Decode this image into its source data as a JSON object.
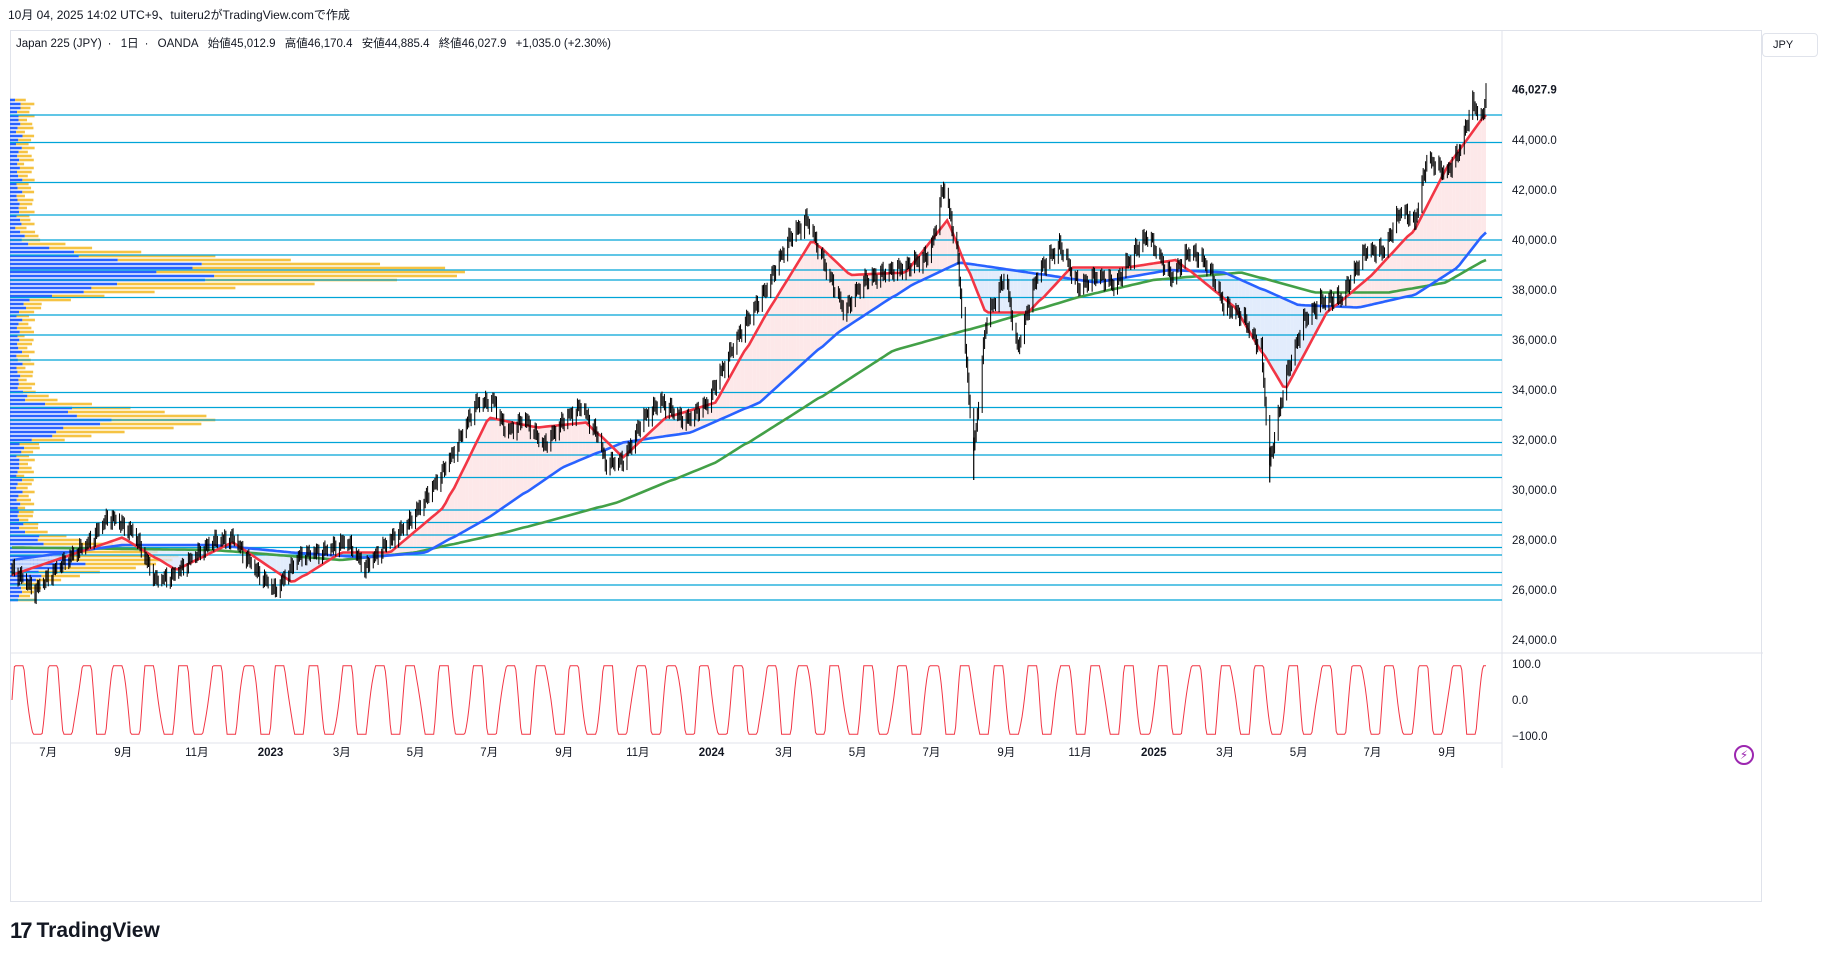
{
  "snapshot": "10月 04, 2025 14:02 UTC+9、tuiteru2がTradingView.comで作成",
  "symbol": {
    "name": "Japan 225 (JPY)",
    "interval": "1日",
    "broker": "OANDA",
    "open": "始値45,012.9",
    "high": "高値46,170.4",
    "low": "安値44,885.4",
    "close": "終値46,027.9",
    "change": "+1,035.0 (+2.30%)",
    "separator": "·"
  },
  "currency": "JPY",
  "logo": {
    "mark": "17",
    "word": "TradingView"
  },
  "colors": {
    "price": "#000000",
    "ma_short": "#f23645",
    "ma_mid": "#2962ff",
    "ma_long": "#43a047",
    "level_line": "#00a4d8",
    "oscillator": "#f23645",
    "vp_up": "#2962ff",
    "vp_down": "#f5c343",
    "fill_up": "#fde2e4",
    "fill_down": "#dbe7fb",
    "last_price_badge": "#000000"
  },
  "icons": {
    "alert": "lightning-icon"
  },
  "chart_data": [
    {
      "type": "candlestick",
      "title": "",
      "ylabel": "",
      "ylim": [
        23000,
        47500
      ],
      "y_ticks": [
        24000,
        26000,
        28000,
        30000,
        32000,
        34000,
        36000,
        38000,
        40000,
        42000,
        44000,
        46000
      ],
      "y_tick_labels": [
        "24,000.0",
        "26,000.0",
        "28,000.0",
        "30,000.0",
        "32,000.0",
        "34,000.0",
        "36,000.0",
        "38,000.0",
        "40,000.0",
        "42,000.0",
        "44,000.0",
        "46,000.0"
      ],
      "last_price_label": "46,027.9",
      "last_price": 46027.9,
      "x_tick_labels": [
        "7月",
        "9月",
        "11月",
        "2023",
        "3月",
        "5月",
        "7月",
        "9月",
        "11月",
        "2024",
        "3月",
        "5月",
        "7月",
        "9月",
        "11月",
        "2025",
        "3月",
        "5月",
        "7月",
        "9月"
      ],
      "x_tick_dates": [
        "2022-07-01",
        "2022-09-01",
        "2022-11-01",
        "2023-01-01",
        "2023-03-01",
        "2023-05-01",
        "2023-07-01",
        "2023-09-01",
        "2023-11-01",
        "2024-01-01",
        "2024-03-01",
        "2024-05-01",
        "2024-07-01",
        "2024-09-01",
        "2024-11-01",
        "2025-01-01",
        "2025-03-01",
        "2025-05-01",
        "2025-07-01",
        "2025-09-01"
      ],
      "x_bold_ticks": [
        "2023",
        "2024",
        "2025"
      ],
      "close_path": [
        [
          "2022-06-01",
          26800
        ],
        [
          "2022-06-20",
          25900
        ],
        [
          "2022-07-10",
          26900
        ],
        [
          "2022-08-05",
          27900
        ],
        [
          "2022-08-20",
          28900
        ],
        [
          "2022-09-10",
          28200
        ],
        [
          "2022-09-28",
          26300
        ],
        [
          "2022-10-12",
          26500
        ],
        [
          "2022-10-28",
          27200
        ],
        [
          "2022-11-15",
          27900
        ],
        [
          "2022-12-01",
          28000
        ],
        [
          "2022-12-20",
          26700
        ],
        [
          "2023-01-05",
          25900
        ],
        [
          "2023-01-25",
          27300
        ],
        [
          "2023-02-15",
          27500
        ],
        [
          "2023-03-05",
          27900
        ],
        [
          "2023-03-20",
          26800
        ],
        [
          "2023-04-05",
          27700
        ],
        [
          "2023-04-25",
          28600
        ],
        [
          "2023-05-15",
          30000
        ],
        [
          "2023-05-31",
          31300
        ],
        [
          "2023-06-20",
          33400
        ],
        [
          "2023-07-05",
          33500
        ],
        [
          "2023-07-15",
          32200
        ],
        [
          "2023-07-30",
          32800
        ],
        [
          "2023-08-15",
          31700
        ],
        [
          "2023-08-31",
          32700
        ],
        [
          "2023-09-15",
          33300
        ],
        [
          "2023-09-30",
          32000
        ],
        [
          "2023-10-05",
          31000
        ],
        [
          "2023-10-20",
          31100
        ],
        [
          "2023-11-05",
          32800
        ],
        [
          "2023-11-20",
          33500
        ],
        [
          "2023-12-10",
          32700
        ],
        [
          "2023-12-28",
          33400
        ],
        [
          "2024-01-10",
          34800
        ],
        [
          "2024-01-25",
          36300
        ],
        [
          "2024-02-15",
          38000
        ],
        [
          "2024-03-05",
          40000
        ],
        [
          "2024-03-20",
          40800
        ],
        [
          "2024-04-05",
          38800
        ],
        [
          "2024-04-20",
          37100
        ],
        [
          "2024-05-05",
          38300
        ],
        [
          "2024-05-25",
          38700
        ],
        [
          "2024-06-10",
          38900
        ],
        [
          "2024-06-30",
          39400
        ],
        [
          "2024-07-11",
          42200
        ],
        [
          "2024-07-22",
          39600
        ],
        [
          "2024-08-05",
          31500
        ],
        [
          "2024-08-15",
          36700
        ],
        [
          "2024-08-31",
          38600
        ],
        [
          "2024-09-10",
          35600
        ],
        [
          "2024-09-27",
          38700
        ],
        [
          "2024-10-15",
          39800
        ],
        [
          "2024-10-31",
          38100
        ],
        [
          "2024-11-15",
          38600
        ],
        [
          "2024-11-30",
          38200
        ],
        [
          "2024-12-15",
          39500
        ],
        [
          "2024-12-27",
          40200
        ],
        [
          "2025-01-15",
          38500
        ],
        [
          "2025-01-31",
          39600
        ],
        [
          "2025-02-15",
          39000
        ],
        [
          "2025-02-28",
          37400
        ],
        [
          "2025-03-15",
          37000
        ],
        [
          "2025-03-31",
          35600
        ],
        [
          "2025-04-07",
          31100
        ],
        [
          "2025-04-20",
          34500
        ],
        [
          "2025-05-05",
          36800
        ],
        [
          "2025-05-20",
          37600
        ],
        [
          "2025-06-05",
          37700
        ],
        [
          "2025-06-25",
          39600
        ],
        [
          "2025-07-10",
          39600
        ],
        [
          "2025-07-25",
          41300
        ],
        [
          "2025-08-05",
          40700
        ],
        [
          "2025-08-15",
          43300
        ],
        [
          "2025-08-31",
          42700
        ],
        [
          "2025-09-10",
          43500
        ],
        [
          "2025-09-22",
          45500
        ],
        [
          "2025-09-30",
          44900
        ],
        [
          "2025-10-03",
          46027.9
        ]
      ],
      "horizontal_levels": [
        45000,
        43900,
        42300,
        41000,
        40000,
        39400,
        38800,
        38400,
        37700,
        37000,
        36200,
        35200,
        33900,
        33300,
        32800,
        31900,
        31400,
        30500,
        29200,
        28700,
        28200,
        27700,
        27400,
        26700,
        26200,
        25600
      ],
      "moving_averages": [
        {
          "period": "short",
          "values": [
            [
              "2022-06-01",
              26600
            ],
            [
              "2022-09-01",
              28100
            ],
            [
              "2022-10-15",
              26800
            ],
            [
              "2022-12-01",
              27900
            ],
            [
              "2023-01-20",
              26300
            ],
            [
              "2023-03-01",
              27500
            ],
            [
              "2023-04-10",
              27500
            ],
            [
              "2023-05-25",
              29300
            ],
            [
              "2023-07-01",
              32900
            ],
            [
              "2023-08-10",
              32500
            ],
            [
              "2023-09-20",
              32700
            ],
            [
              "2023-10-20",
              31300
            ],
            [
              "2023-11-25",
              32900
            ],
            [
              "2024-01-05",
              33500
            ],
            [
              "2024-02-15",
              37000
            ],
            [
              "2024-03-25",
              40000
            ],
            [
              "2024-04-25",
              38600
            ],
            [
              "2024-06-10",
              38700
            ],
            [
              "2024-07-15",
              40800
            ],
            [
              "2024-08-15",
              37100
            ],
            [
              "2024-09-20",
              37100
            ],
            [
              "2024-10-25",
              38900
            ],
            [
              "2024-12-10",
              38900
            ],
            [
              "2025-01-20",
              39200
            ],
            [
              "2025-03-10",
              37300
            ],
            [
              "2025-04-20",
              34000
            ],
            [
              "2025-05-25",
              37100
            ],
            [
              "2025-07-01",
              38600
            ],
            [
              "2025-08-05",
              40400
            ],
            [
              "2025-09-01",
              42900
            ],
            [
              "2025-10-03",
              45000
            ]
          ]
        },
        {
          "period": "mid",
          "values": [
            [
              "2022-06-01",
              27200
            ],
            [
              "2022-09-01",
              27800
            ],
            [
              "2022-11-15",
              27800
            ],
            [
              "2023-01-20",
              27500
            ],
            [
              "2023-03-20",
              27300
            ],
            [
              "2023-05-10",
              27500
            ],
            [
              "2023-07-01",
              28900
            ],
            [
              "2023-08-31",
              30900
            ],
            [
              "2023-10-20",
              31900
            ],
            [
              "2023-12-15",
              32300
            ],
            [
              "2024-02-10",
              33500
            ],
            [
              "2024-04-15",
              36300
            ],
            [
              "2024-06-15",
              38200
            ],
            [
              "2024-07-25",
              39100
            ],
            [
              "2024-09-20",
              38700
            ],
            [
              "2024-11-15",
              38300
            ],
            [
              "2025-01-15",
              38800
            ],
            [
              "2025-03-01",
              38700
            ],
            [
              "2025-05-01",
              37400
            ],
            [
              "2025-06-20",
              37300
            ],
            [
              "2025-08-05",
              37800
            ],
            [
              "2025-09-10",
              38900
            ],
            [
              "2025-10-03",
              40300
            ]
          ]
        },
        {
          "period": "long",
          "values": [
            [
              "2022-06-01",
              27700
            ],
            [
              "2022-11-15",
              27600
            ],
            [
              "2023-03-01",
              27200
            ],
            [
              "2023-05-01",
              27500
            ],
            [
              "2023-07-15",
              28300
            ],
            [
              "2023-10-15",
              29500
            ],
            [
              "2024-01-05",
              31100
            ],
            [
              "2024-03-15",
              33200
            ],
            [
              "2024-06-01",
              35600
            ],
            [
              "2024-08-15",
              36600
            ],
            [
              "2024-10-30",
              37700
            ],
            [
              "2025-01-01",
              38400
            ],
            [
              "2025-03-15",
              38700
            ],
            [
              "2025-05-15",
              37900
            ],
            [
              "2025-07-15",
              37900
            ],
            [
              "2025-08-31",
              38300
            ],
            [
              "2025-10-03",
              39200
            ]
          ]
        }
      ]
    },
    {
      "type": "line",
      "title": "",
      "ylim": [
        -110,
        110
      ],
      "y_ticks": [
        100,
        0,
        -100
      ],
      "y_tick_labels": [
        "100.0",
        "0.0",
        "−100.0"
      ],
      "cycle_days": 27,
      "range": [
        -95,
        95
      ]
    }
  ]
}
